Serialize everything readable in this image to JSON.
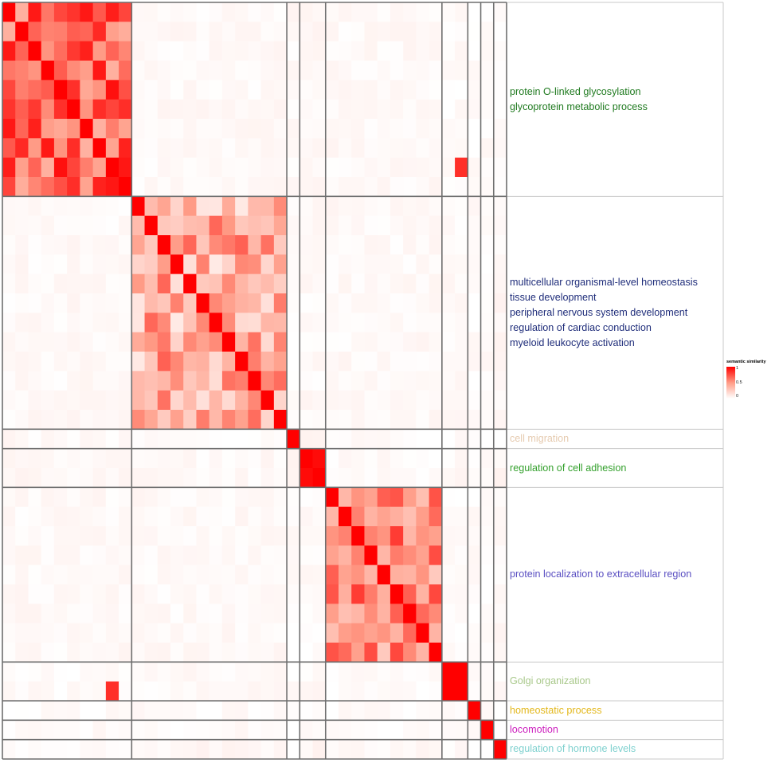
{
  "legend": {
    "title": "semantic similarity",
    "ticks": [
      "1",
      "0.5",
      "0"
    ],
    "colors": [
      "#ffffff",
      "#ff9b86",
      "#ff0000"
    ]
  },
  "chart_data": {
    "type": "heatmap",
    "title": "",
    "xlabel": "",
    "ylabel": "",
    "value_range": [
      0,
      1
    ],
    "matrix_size": 39,
    "clusters": [
      {
        "size": 10,
        "labels": [
          "protein O-linked glycosylation",
          "glycoprotein metabolic process"
        ],
        "color": "#1f7a1f"
      },
      {
        "size": 12,
        "labels": [
          "multicellular organismal-level homeostasis",
          "tissue development",
          "peripheral nervous system development",
          "regulation of cardiac conduction",
          "myeloid leukocyte activation"
        ],
        "color": "#1f2d7a"
      },
      {
        "size": 1,
        "labels": [
          "cell migration"
        ],
        "color": "#e6cbb0"
      },
      {
        "size": 2,
        "labels": [
          "regulation of cell adhesion"
        ],
        "color": "#33a02c"
      },
      {
        "size": 9,
        "labels": [
          "protein localization to extracellular region"
        ],
        "color": "#5a4fc2"
      },
      {
        "size": 2,
        "labels": [
          "Golgi organization"
        ],
        "color": "#a8c88a"
      },
      {
        "size": 1,
        "labels": [
          "homeostatic process"
        ],
        "color": "#e3b81d"
      },
      {
        "size": 1,
        "labels": [
          "locomotion"
        ],
        "color": "#cc1fbe"
      },
      {
        "size": 1,
        "labels": [
          "regulation of hormone levels"
        ],
        "color": "#7fd1cf"
      }
    ],
    "block_similarity": [
      [
        0.68,
        0.03,
        0.03,
        0.04,
        0.03,
        0.02,
        0.02,
        0.02,
        0.02
      ],
      [
        0.03,
        0.4,
        0.02,
        0.03,
        0.03,
        0.03,
        0.02,
        0.02,
        0.04
      ],
      [
        0.03,
        0.02,
        1.0,
        0.05,
        0.02,
        0.02,
        0.02,
        0.02,
        0.02
      ],
      [
        0.04,
        0.03,
        0.05,
        0.85,
        0.02,
        0.03,
        0.02,
        0.02,
        0.05
      ],
      [
        0.03,
        0.03,
        0.02,
        0.02,
        0.55,
        0.02,
        0.02,
        0.02,
        0.03
      ],
      [
        0.02,
        0.03,
        0.02,
        0.03,
        0.02,
        0.85,
        0.02,
        0.02,
        0.03
      ],
      [
        0.02,
        0.02,
        0.02,
        0.02,
        0.02,
        0.02,
        1.0,
        0.02,
        0.02
      ],
      [
        0.02,
        0.02,
        0.02,
        0.02,
        0.02,
        0.02,
        0.02,
        1.0,
        0.02
      ],
      [
        0.02,
        0.04,
        0.02,
        0.05,
        0.03,
        0.03,
        0.02,
        0.02,
        1.0
      ]
    ],
    "strong_off_diagonal": [
      {
        "row": 8,
        "col": 35,
        "value": 0.85
      },
      {
        "row": 35,
        "col": 8,
        "value": 0.85
      }
    ],
    "grid": false,
    "legend_position": "right"
  }
}
